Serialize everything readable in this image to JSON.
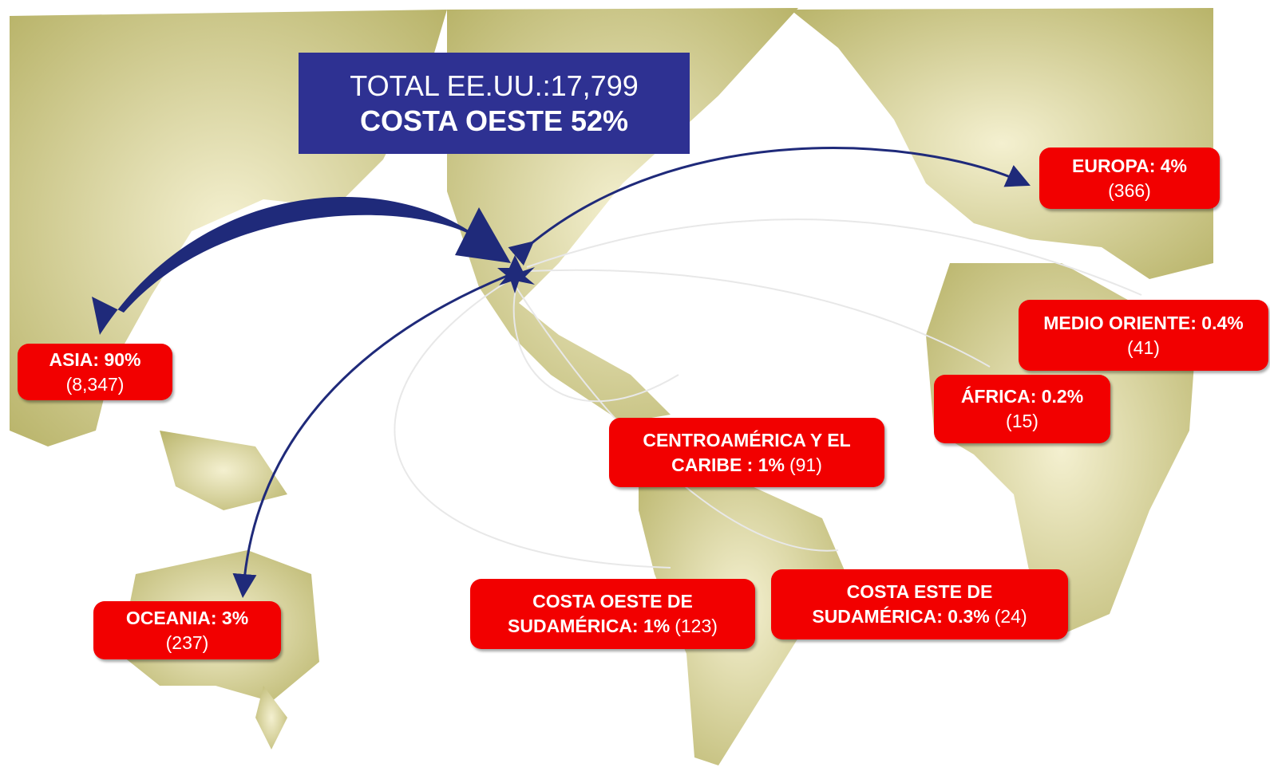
{
  "header": {
    "line1": "TOTAL EE.UU.:17,799",
    "line2": "COSTA OESTE 52%"
  },
  "regions": [
    {
      "label": "ASIA: 90%",
      "count": "(8,347)"
    },
    {
      "label": "OCEANIA: 3%",
      "count": "(237)"
    },
    {
      "label": "EUROPA: 4%",
      "count": "(366)"
    },
    {
      "label": "MEDIO ORIENTE: 0.4%",
      "count": "(41)"
    },
    {
      "label": "ÁFRICA: 0.2%",
      "count": "(15)"
    },
    {
      "label": "CENTROAMÉRICA Y EL CARIBE : 1%",
      "count": "(91)"
    },
    {
      "label": "COSTA OESTE DE SUDAMÉRICA: 1%",
      "count": "(123)"
    },
    {
      "label": "COSTA ESTE DE SUDAMÉRICA: 0.3%",
      "count": "(24)"
    }
  ]
}
